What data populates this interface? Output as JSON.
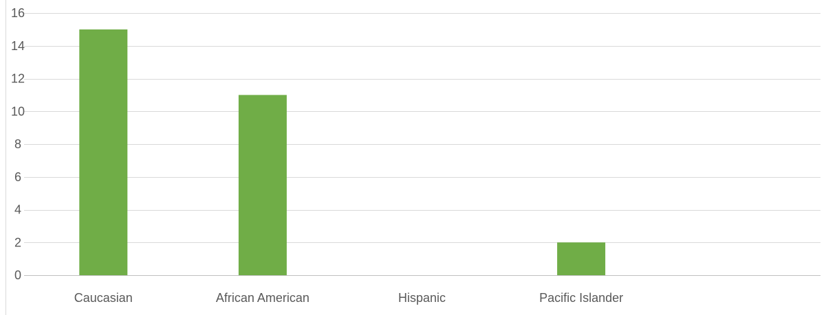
{
  "chart_data": {
    "type": "bar",
    "title": "",
    "xlabel": "",
    "ylabel": "",
    "categories": [
      "Caucasian",
      "African American",
      "Hispanic",
      "Pacific Islander",
      ""
    ],
    "values": [
      15,
      11,
      0,
      2,
      0
    ],
    "ylim": [
      0,
      16
    ],
    "yticks": [
      0,
      2,
      4,
      6,
      8,
      10,
      12,
      14,
      16
    ],
    "grid": true,
    "legend": "none",
    "colors": {
      "bar": "#70ad47",
      "grid": "#d9d9d9",
      "axis": "#bfbfbf",
      "tick_text": "#595959"
    }
  }
}
